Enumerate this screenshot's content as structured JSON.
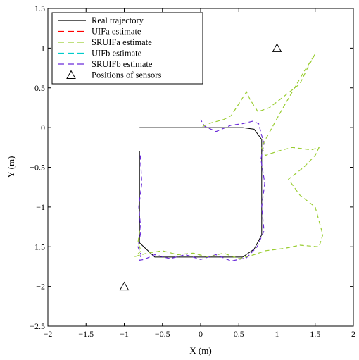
{
  "chart_data": {
    "type": "line",
    "title": "",
    "xlabel": "X (m)",
    "ylabel": "Y (m)",
    "xlim": [
      -2,
      2
    ],
    "ylim": [
      -2.5,
      1.5
    ],
    "x_ticks": [
      -2,
      -1.5,
      -1,
      -0.5,
      0,
      0.5,
      1,
      1.5,
      2
    ],
    "y_ticks": [
      -2.5,
      -2,
      -1.5,
      -1,
      -0.5,
      0,
      0.5,
      1,
      1.5
    ],
    "x_tick_labels": [
      "−2",
      "−1.5",
      "−1",
      "−0.5",
      "0",
      "0.5",
      "1",
      "1.5",
      "2"
    ],
    "y_tick_labels": [
      "−2.5",
      "−2",
      "−1.5",
      "−1",
      "−0.5",
      "0",
      "0.5",
      "1",
      "1.5"
    ],
    "grid": false,
    "legend_position": "top-left",
    "legend": [
      {
        "label": "Real trajectory",
        "color": "#000000",
        "style": "solid"
      },
      {
        "label": "UIFa estimate",
        "color": "#ff0000",
        "style": "dashed"
      },
      {
        "label": "SRUIFa estimate",
        "color": "#9acd32",
        "style": "dashed"
      },
      {
        "label": "UIFb estimate",
        "color": "#00cccc",
        "style": "dashed"
      },
      {
        "label": "SRUIFb estimate",
        "color": "#6a2bd9",
        "style": "dashed"
      },
      {
        "label": "Positions of sensors",
        "color": "#000000",
        "style": "triangle"
      }
    ],
    "series": [
      {
        "name": "Real trajectory",
        "color": "#000000",
        "style": "solid",
        "x": [
          -0.8,
          -0.8,
          -0.6,
          -0.4,
          -0.2,
          0.0,
          0.2,
          0.4,
          0.55,
          0.7,
          0.8,
          0.8,
          0.8,
          0.8,
          0.8,
          0.8,
          0.7,
          0.55,
          0.4,
          0.2,
          0.0,
          -0.2,
          -0.4,
          -0.6,
          -0.8,
          -0.8
        ],
        "y": [
          -0.3,
          -1.45,
          -1.63,
          -1.63,
          -1.63,
          -1.63,
          -1.63,
          -1.63,
          -1.63,
          -1.53,
          -1.35,
          -1.0,
          -0.6,
          -0.2,
          -0.15,
          -0.15,
          -0.02,
          0.0,
          0.0,
          0.0,
          0.0,
          0.0,
          0.0,
          0.0,
          0.0,
          0.0
        ]
      },
      {
        "name": "SRUIFb estimate",
        "color": "#6a2bd9",
        "style": "dashed",
        "x": [
          -0.79,
          -0.77,
          -0.81,
          -0.78,
          -0.82,
          -0.78,
          -0.8,
          -0.74,
          -0.6,
          -0.4,
          -0.2,
          0.0,
          0.2,
          0.4,
          0.6,
          0.74,
          0.83,
          0.8,
          0.84,
          0.79,
          0.83,
          0.8,
          0.76,
          0.68,
          0.55,
          0.4,
          0.2,
          0.05,
          0.0
        ],
        "y": [
          -0.35,
          -0.7,
          -1.0,
          -1.3,
          -1.5,
          -1.6,
          -1.67,
          -1.66,
          -1.6,
          -1.65,
          -1.6,
          -1.66,
          -1.6,
          -1.68,
          -1.64,
          -1.5,
          -1.3,
          -1.0,
          -0.7,
          -0.4,
          -0.2,
          -0.1,
          0.05,
          0.08,
          0.05,
          0.03,
          -0.05,
          0.02,
          0.1
        ]
      },
      {
        "name": "SRUIFa estimate",
        "color": "#9acd32",
        "style": "dashed",
        "x": [
          -0.8,
          -0.82,
          -0.78,
          -0.85,
          -0.7,
          -0.5,
          -0.3,
          -0.1,
          0.1,
          0.3,
          0.5,
          0.7,
          0.85,
          1.1,
          1.3,
          1.55,
          1.6,
          1.5,
          1.3,
          1.15,
          1.35,
          1.5,
          1.55,
          1.45,
          1.2,
          1.0,
          0.85,
          0.8,
          0.85,
          1.05,
          1.2,
          1.35,
          1.45,
          1.5,
          1.4,
          1.3,
          1.1,
          0.9,
          0.75,
          0.65,
          0.6,
          0.5,
          0.4,
          0.3,
          0.1,
          0.0
        ],
        "y": [
          -1.3,
          -1.45,
          -1.55,
          -1.62,
          -1.58,
          -1.55,
          -1.6,
          -1.58,
          -1.63,
          -1.58,
          -1.65,
          -1.6,
          -1.55,
          -1.52,
          -1.48,
          -1.5,
          -1.35,
          -1.0,
          -0.85,
          -0.65,
          -0.5,
          -0.35,
          -0.25,
          -0.28,
          -0.25,
          -0.3,
          -0.35,
          -0.25,
          -0.15,
          0.2,
          0.45,
          0.7,
          0.85,
          0.93,
          0.75,
          0.55,
          0.4,
          0.25,
          0.2,
          0.35,
          0.45,
          0.3,
          0.15,
          0.1,
          0.05,
          0.0
        ]
      }
    ],
    "sensors": {
      "name": "Positions of sensors",
      "x": [
        1.0,
        -1.0
      ],
      "y": [
        1.0,
        -2.0
      ]
    }
  }
}
